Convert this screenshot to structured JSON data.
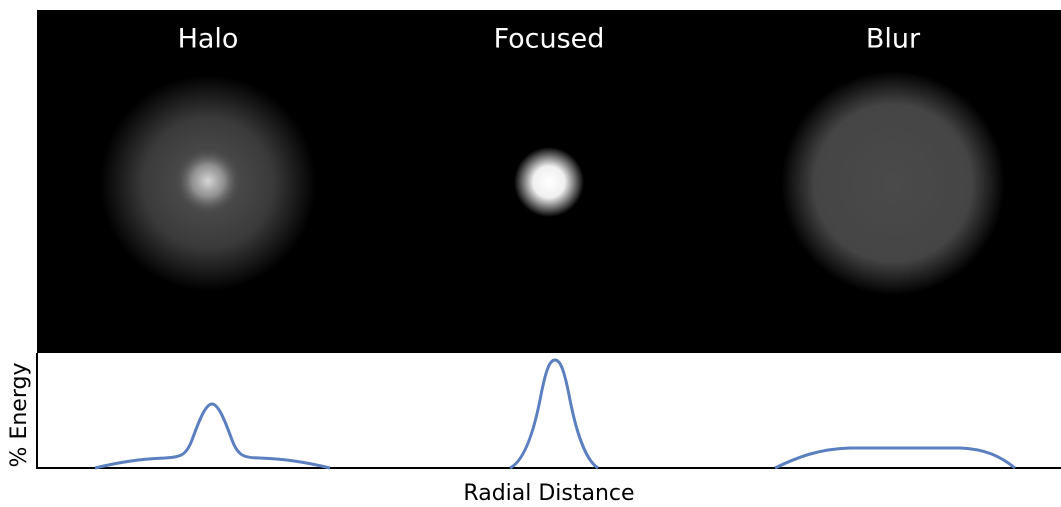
{
  "panels": [
    {
      "label": "Halo"
    },
    {
      "label": "Focused"
    },
    {
      "label": "Blur"
    }
  ],
  "plot": {
    "y_label": "% Energy",
    "x_label": "Radial Distance"
  }
}
